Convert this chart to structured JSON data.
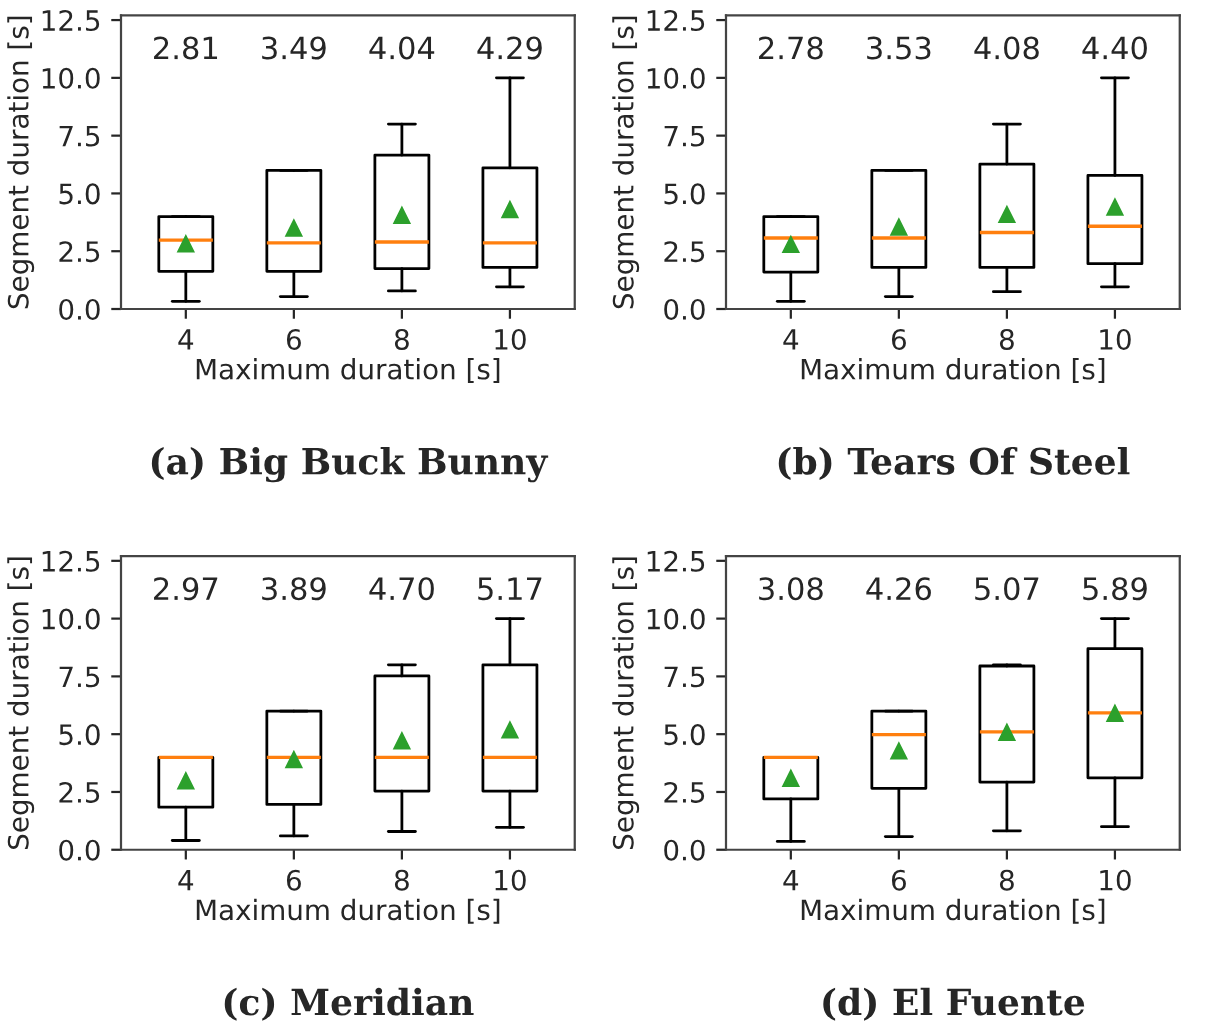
{
  "chart_data": [
    {
      "type": "box",
      "title": "(a) Big Buck Bunny",
      "xlabel": "Maximum duration [s]",
      "ylabel": "Segment duration [s]",
      "categories": [
        "4",
        "6",
        "8",
        "10"
      ],
      "ylim": [
        0,
        12.7
      ],
      "yticks": [
        {
          "value": 0,
          "label": "0.0"
        },
        {
          "value": 2.5,
          "label": "2.5"
        },
        {
          "value": 5,
          "label": "5.0"
        },
        {
          "value": 7.5,
          "label": "7.5"
        },
        {
          "value": 10,
          "label": "10.0"
        },
        {
          "value": 12.5,
          "label": "12.5"
        }
      ],
      "marker": "triangle",
      "grid": false,
      "legend": false,
      "boxes": [
        {
          "low": 0.33,
          "q1": 1.63,
          "median": 2.98,
          "q3": 4.0,
          "high": 4.0,
          "mean": 2.81
        },
        {
          "low": 0.54,
          "q1": 1.63,
          "median": 2.86,
          "q3": 6.0,
          "high": 6.0,
          "mean": 3.49
        },
        {
          "low": 0.78,
          "q1": 1.75,
          "median": 2.9,
          "q3": 6.66,
          "high": 8.0,
          "mean": 4.04
        },
        {
          "low": 0.96,
          "q1": 1.8,
          "median": 2.86,
          "q3": 6.11,
          "high": 10.0,
          "mean": 4.29
        }
      ],
      "value_labels": [
        "2.81",
        "3.49",
        "4.04",
        "4.29"
      ]
    },
    {
      "type": "box",
      "title": "(b) Tears Of Steel",
      "xlabel": "Maximum duration [s]",
      "ylabel": "Segment duration [s]",
      "categories": [
        "4",
        "6",
        "8",
        "10"
      ],
      "ylim": [
        0,
        12.7
      ],
      "yticks": [
        {
          "value": 0,
          "label": "0.0"
        },
        {
          "value": 2.5,
          "label": "2.5"
        },
        {
          "value": 5,
          "label": "5.0"
        },
        {
          "value": 7.5,
          "label": "7.5"
        },
        {
          "value": 10,
          "label": "10.0"
        },
        {
          "value": 12.5,
          "label": "12.5"
        }
      ],
      "marker": "triangle",
      "grid": false,
      "legend": false,
      "boxes": [
        {
          "low": 0.33,
          "q1": 1.6,
          "median": 3.07,
          "q3": 4.0,
          "high": 4.0,
          "mean": 2.78
        },
        {
          "low": 0.54,
          "q1": 1.8,
          "median": 3.07,
          "q3": 6.0,
          "high": 6.0,
          "mean": 3.53
        },
        {
          "low": 0.75,
          "q1": 1.8,
          "median": 3.31,
          "q3": 6.27,
          "high": 8.0,
          "mean": 4.08
        },
        {
          "low": 0.96,
          "q1": 1.96,
          "median": 3.58,
          "q3": 5.78,
          "high": 10.0,
          "mean": 4.4
        }
      ],
      "value_labels": [
        "2.78",
        "3.53",
        "4.08",
        "4.40"
      ]
    },
    {
      "type": "box",
      "title": "(c) Meridian",
      "xlabel": "Maximum duration [s]",
      "ylabel": "Segment duration [s]",
      "categories": [
        "4",
        "6",
        "8",
        "10"
      ],
      "ylim": [
        0,
        12.7
      ],
      "yticks": [
        {
          "value": 0,
          "label": "0.0"
        },
        {
          "value": 2.5,
          "label": "2.5"
        },
        {
          "value": 5,
          "label": "5.0"
        },
        {
          "value": 7.5,
          "label": "7.5"
        },
        {
          "value": 10,
          "label": "10.0"
        },
        {
          "value": 12.5,
          "label": "12.5"
        }
      ],
      "marker": "triangle",
      "grid": false,
      "legend": false,
      "boxes": [
        {
          "low": 0.4,
          "q1": 1.84,
          "median": 4.0,
          "q3": 4.0,
          "high": 4.0,
          "mean": 2.97
        },
        {
          "low": 0.6,
          "q1": 1.96,
          "median": 4.0,
          "q3": 6.0,
          "high": 6.0,
          "mean": 3.89
        },
        {
          "low": 0.79,
          "q1": 2.54,
          "median": 4.0,
          "q3": 7.52,
          "high": 8.0,
          "mean": 4.7
        },
        {
          "low": 0.97,
          "q1": 2.54,
          "median": 4.0,
          "q3": 8.0,
          "high": 10.0,
          "mean": 5.17
        }
      ],
      "value_labels": [
        "2.97",
        "3.89",
        "4.70",
        "5.17"
      ]
    },
    {
      "type": "box",
      "title": "(d) El Fuente",
      "xlabel": "Maximum duration [s]",
      "ylabel": "Segment duration [s]",
      "categories": [
        "4",
        "6",
        "8",
        "10"
      ],
      "ylim": [
        0,
        12.7
      ],
      "yticks": [
        {
          "value": 0,
          "label": "0.0"
        },
        {
          "value": 2.5,
          "label": "2.5"
        },
        {
          "value": 5,
          "label": "5.0"
        },
        {
          "value": 7.5,
          "label": "7.5"
        },
        {
          "value": 10,
          "label": "10.0"
        },
        {
          "value": 12.5,
          "label": "12.5"
        }
      ],
      "marker": "triangle",
      "grid": false,
      "legend": false,
      "boxes": [
        {
          "low": 0.36,
          "q1": 2.2,
          "median": 4.0,
          "q3": 4.0,
          "high": 4.0,
          "mean": 3.08
        },
        {
          "low": 0.57,
          "q1": 2.66,
          "median": 4.98,
          "q3": 6.0,
          "high": 6.0,
          "mean": 4.26
        },
        {
          "low": 0.82,
          "q1": 2.93,
          "median": 5.1,
          "q3": 7.95,
          "high": 8.0,
          "mean": 5.07
        },
        {
          "low": 1.0,
          "q1": 3.11,
          "median": 5.92,
          "q3": 8.7,
          "high": 10.0,
          "mean": 5.89
        }
      ],
      "value_labels": [
        "3.08",
        "4.26",
        "5.07",
        "5.89"
      ]
    }
  ]
}
